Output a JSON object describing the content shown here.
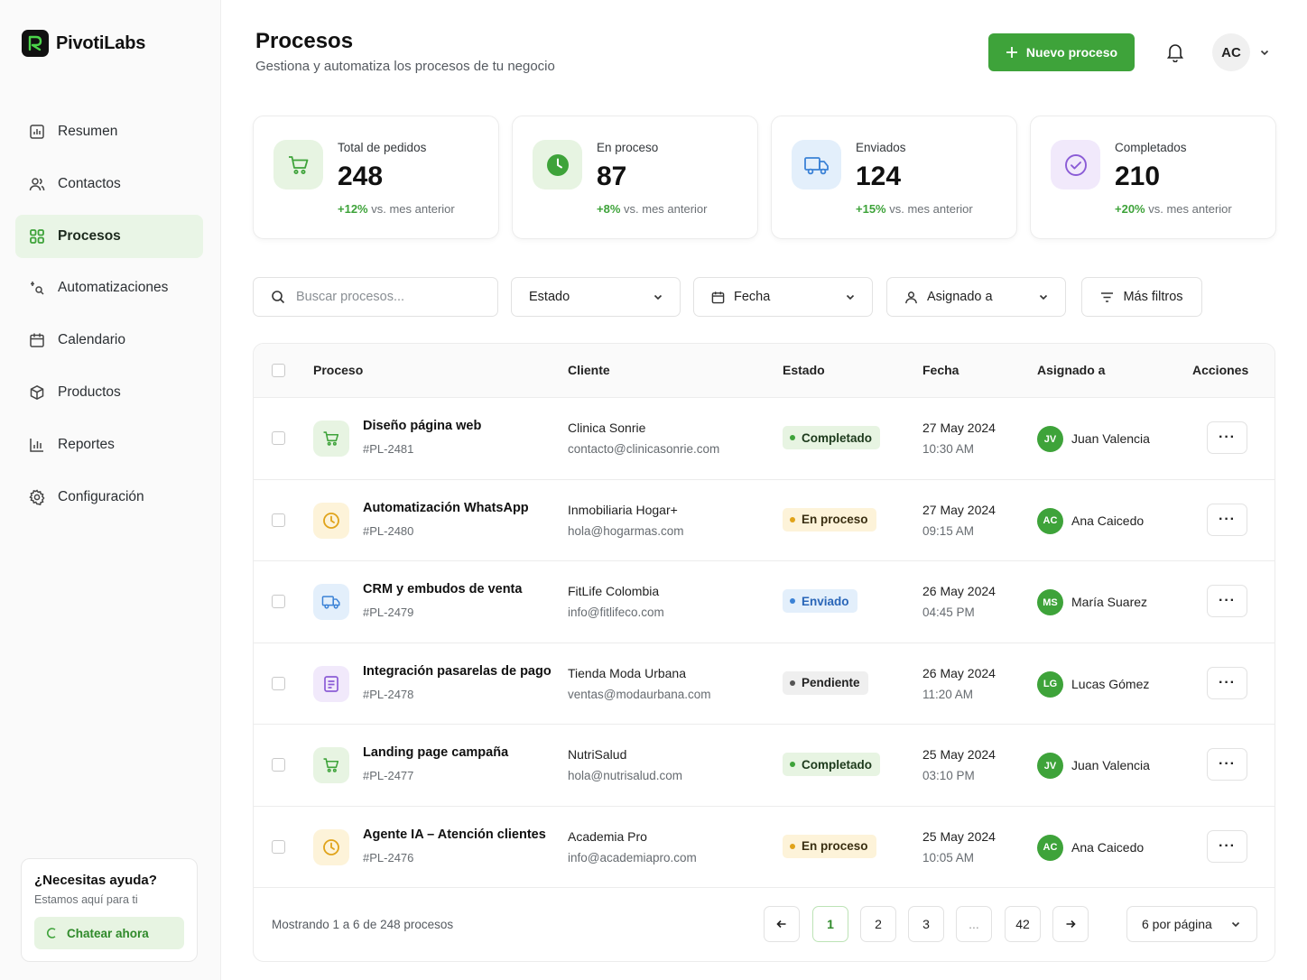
{
  "app": {
    "name": "PivotiLabs"
  },
  "sidebar": {
    "items": [
      {
        "label": "Resumen",
        "icon": "dashboard-icon",
        "active": false
      },
      {
        "label": "Contactos",
        "icon": "users-icon",
        "active": false
      },
      {
        "label": "Procesos",
        "icon": "grid-icon",
        "active": true
      },
      {
        "label": "Automatizaciones",
        "icon": "automation-icon",
        "active": false
      },
      {
        "label": "Calendario",
        "icon": "calendar-icon",
        "active": false
      },
      {
        "label": "Productos",
        "icon": "box-icon",
        "active": false
      },
      {
        "label": "Reportes",
        "icon": "chart-icon",
        "active": false
      },
      {
        "label": "Configuración",
        "icon": "gear-icon",
        "active": false
      }
    ],
    "help": {
      "title": "¿Necesitas ayuda?",
      "subtitle": "Estamos aquí para ti",
      "button": "Chatear ahora"
    }
  },
  "header": {
    "title": "Procesos",
    "subtitle": "Gestiona y automatiza los procesos de tu negocio",
    "new_button": "Nuevo proceso",
    "avatar_initials": "AC"
  },
  "stats": [
    {
      "label": "Total de pedidos",
      "value": "248",
      "trend": "+12%",
      "trend_text": "vs. mes anterior",
      "icon": "cart-icon"
    },
    {
      "label": "En proceso",
      "value": "87",
      "trend": "+8%",
      "trend_text": "vs. mes anterior",
      "icon": "clock-icon"
    },
    {
      "label": "Enviados",
      "value": "124",
      "trend": "+15%",
      "trend_text": "vs. mes anterior",
      "icon": "truck-icon"
    },
    {
      "label": "Completados",
      "value": "210",
      "trend": "+20%",
      "trend_text": "vs. mes anterior",
      "icon": "check-circle-icon"
    }
  ],
  "filters": {
    "search_placeholder": "Buscar procesos...",
    "estado": "Estado",
    "fecha": "Fecha",
    "asignado": "Asignado a",
    "more": "Más filtros"
  },
  "table": {
    "columns": [
      "Proceso",
      "Cliente",
      "Estado",
      "Fecha",
      "Asignado a",
      "Acciones"
    ],
    "rows": [
      {
        "title": "Diseño página web",
        "id": "#PL-2481",
        "client": "Clinica Sonrie",
        "email": "contacto@clinicasonrie.com",
        "status": "Completado",
        "date": "27 May 2024",
        "time": "10:30 AM",
        "initials": "JV",
        "assignee": "Juan Valencia",
        "icon": "cart-icon"
      },
      {
        "title": "Automatización WhatsApp",
        "id": "#PL-2480",
        "client": "Inmobiliaria Hogar+",
        "email": "hola@hogarmas.com",
        "status": "En proceso",
        "date": "27 May 2024",
        "time": "09:15 AM",
        "initials": "AC",
        "assignee": "Ana Caicedo",
        "icon": "clock-icon"
      },
      {
        "title": "CRM y embudos de venta",
        "id": "#PL-2479",
        "client": "FitLife Colombia",
        "email": "info@fitlifeco.com",
        "status": "Enviado",
        "date": "26 May 2024",
        "time": "04:45 PM",
        "initials": "MS",
        "assignee": "María Suarez",
        "icon": "truck-icon"
      },
      {
        "title": "Integración pasarelas de pago",
        "id": "#PL-2478",
        "client": "Tienda Moda Urbana",
        "email": "ventas@modaurbana.com",
        "status": "Pendiente",
        "date": "26 May 2024",
        "time": "11:20 AM",
        "initials": "LG",
        "assignee": "Lucas Gómez",
        "icon": "document-icon"
      },
      {
        "title": "Landing page campaña",
        "id": "#PL-2477",
        "client": "NutriSalud",
        "email": "hola@nutrisalud.com",
        "status": "Completado",
        "date": "25 May 2024",
        "time": "03:10 PM",
        "initials": "JV",
        "assignee": "Juan Valencia",
        "icon": "cart-icon"
      },
      {
        "title": "Agente IA – Atención clientes",
        "id": "#PL-2476",
        "client": "Academia Pro",
        "email": "info@academiapro.com",
        "status": "En proceso",
        "date": "25 May 2024",
        "time": "10:05 AM",
        "initials": "AC",
        "assignee": "Ana Caicedo",
        "icon": "clock-icon"
      }
    ],
    "more_label": "···"
  },
  "pagination": {
    "summary": "Mostrando 1 a 6 de 248 procesos",
    "pages": [
      "1",
      "2",
      "3",
      "...",
      "42"
    ],
    "current": "1",
    "per_page": "6 por página"
  },
  "colors": {
    "accent": "#3ea33a",
    "completed_bg": "#e7f4e2",
    "in_progress_bg": "#fdf3d9",
    "sent_bg": "#e3effb",
    "pending_bg": "#efefef"
  }
}
